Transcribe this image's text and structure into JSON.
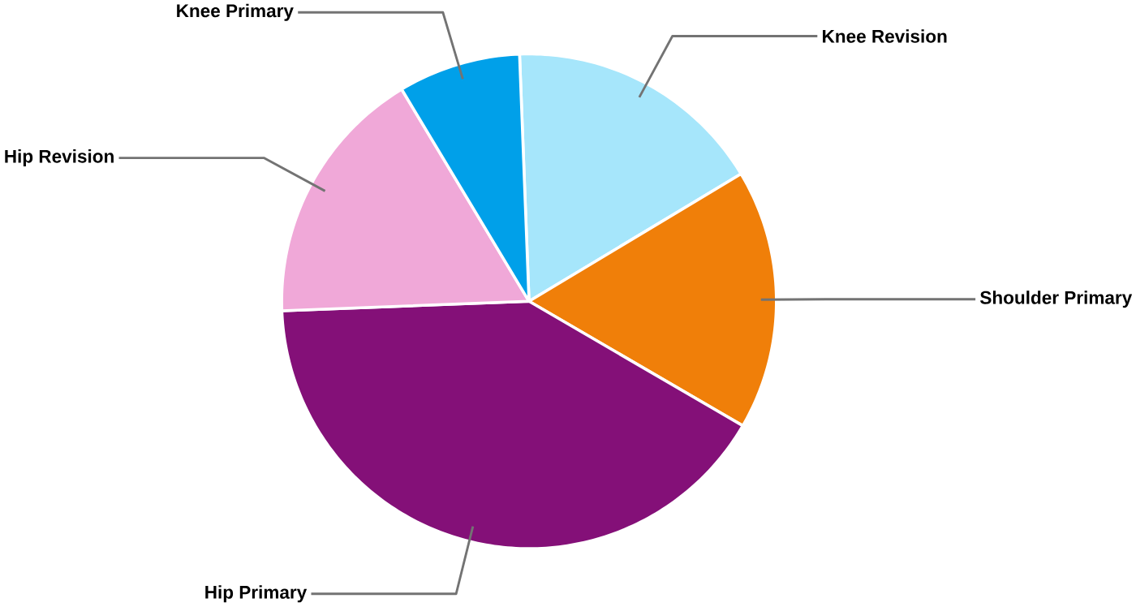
{
  "chart_data": {
    "type": "pie",
    "categories": [
      "Knee Revision",
      "Shoulder Primary",
      "Hip Primary",
      "Hip Revision",
      "Knee Primary"
    ],
    "values": [
      17,
      17,
      41,
      17,
      8
    ],
    "colors": [
      "#a6e6fb",
      "#f07f09",
      "#841078",
      "#f0a8d8",
      "#00a0e9"
    ]
  }
}
